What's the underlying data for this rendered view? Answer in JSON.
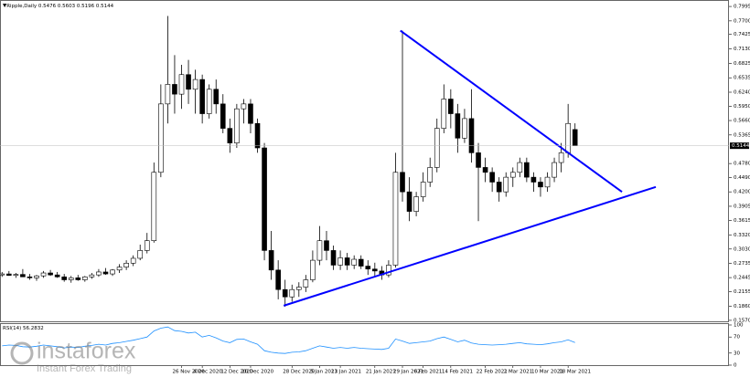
{
  "chart_data": {
    "type": "candlestick",
    "title": "Ripple,Daily",
    "xlim": [
      -0.3,
      105.3
    ],
    "ylim": [
      0.155,
      0.809
    ],
    "yticks": [
      {
        "value": 0.7995,
        "label": "0.7995"
      },
      {
        "value": 0.77,
        "label": "0.7700"
      },
      {
        "value": 0.7425,
        "label": "0.7425"
      },
      {
        "value": 0.713,
        "label": "0.7130"
      },
      {
        "value": 0.6825,
        "label": "0.6825"
      },
      {
        "value": 0.6535,
        "label": "0.6535"
      },
      {
        "value": 0.624,
        "label": "0.6240"
      },
      {
        "value": 0.595,
        "label": "0.5950"
      },
      {
        "value": 0.566,
        "label": "0.5660"
      },
      {
        "value": 0.5365,
        "label": "0.5365"
      },
      {
        "value": 0.478,
        "label": "0.4780"
      },
      {
        "value": 0.449,
        "label": "0.4490"
      },
      {
        "value": 0.42,
        "label": "0.4200"
      },
      {
        "value": 0.3905,
        "label": "0.3905"
      },
      {
        "value": 0.3615,
        "label": "0.3615"
      },
      {
        "value": 0.332,
        "label": "0.3320"
      },
      {
        "value": 0.303,
        "label": "0.3030"
      },
      {
        "value": 0.2735,
        "label": "0.2735"
      },
      {
        "value": 0.2445,
        "label": "0.2445"
      },
      {
        "value": 0.2155,
        "label": "0.2155"
      },
      {
        "value": 0.186,
        "label": "0.1860"
      },
      {
        "value": 0.157,
        "label": "0.1570"
      }
    ],
    "categories": [
      null,
      null,
      null,
      null,
      null,
      null,
      null,
      null,
      null,
      null,
      null,
      null,
      null,
      null,
      null,
      null,
      null,
      null,
      null,
      null,
      null,
      null,
      null,
      null,
      null,
      null,
      "26 Nov 2020",
      null,
      null,
      "4 Dec 2020",
      null,
      null,
      null,
      "12 Dec 2020",
      null,
      null,
      "20 Dec 2020",
      null,
      null,
      null,
      null,
      null,
      "28 Dec 2020",
      null,
      null,
      null,
      "5 Jan 2021",
      null,
      null,
      "13 Jan 2021",
      null,
      null,
      null,
      null,
      "21 Jan 2021",
      null,
      null,
      null,
      "29 Jan 2021",
      null,
      null,
      "6 Feb 2021",
      null,
      null,
      null,
      "14 Feb 2021",
      null,
      null,
      null,
      null,
      "22 Feb 2021",
      null,
      null,
      null,
      "2 Mar 2021",
      null,
      null,
      null,
      "10 Mar 2021",
      null,
      null,
      null,
      "18 Mar 2021",
      null
    ],
    "series": [
      {
        "name": "Ripple",
        "up_color": "#ffffff",
        "down_color": "#000000",
        "values": [
          [
            0.25,
            0.256,
            0.246,
            0.252
          ],
          [
            0.252,
            0.258,
            0.248,
            0.249
          ],
          [
            0.249,
            0.254,
            0.244,
            0.251
          ],
          [
            0.251,
            0.262,
            0.248,
            0.246
          ],
          [
            0.246,
            0.252,
            0.24,
            0.244
          ],
          [
            0.244,
            0.25,
            0.238,
            0.248
          ],
          [
            0.248,
            0.258,
            0.244,
            0.254
          ],
          [
            0.254,
            0.26,
            0.248,
            0.25
          ],
          [
            0.25,
            0.256,
            0.244,
            0.246
          ],
          [
            0.246,
            0.252,
            0.236,
            0.24
          ],
          [
            0.24,
            0.248,
            0.234,
            0.244
          ],
          [
            0.244,
            0.25,
            0.238,
            0.24
          ],
          [
            0.24,
            0.248,
            0.236,
            0.246
          ],
          [
            0.246,
            0.254,
            0.242,
            0.25
          ],
          [
            0.25,
            0.262,
            0.246,
            0.256
          ],
          [
            0.256,
            0.264,
            0.25,
            0.252
          ],
          [
            0.252,
            0.262,
            0.248,
            0.26
          ],
          [
            0.26,
            0.272,
            0.254,
            0.266
          ],
          [
            0.266,
            0.28,
            0.26,
            0.274
          ],
          [
            0.274,
            0.29,
            0.268,
            0.284
          ],
          [
            0.284,
            0.312,
            0.28,
            0.3
          ],
          [
            0.3,
            0.336,
            0.294,
            0.32
          ],
          [
            0.32,
            0.48,
            0.316,
            0.46
          ],
          [
            0.46,
            0.64,
            0.45,
            0.6
          ],
          [
            0.6,
            0.78,
            0.56,
            0.64
          ],
          [
            0.64,
            0.7,
            0.58,
            0.62
          ],
          [
            0.62,
            0.68,
            0.59,
            0.66
          ],
          [
            0.66,
            0.69,
            0.6,
            0.63
          ],
          [
            0.63,
            0.67,
            0.58,
            0.65
          ],
          [
            0.65,
            0.66,
            0.56,
            0.58
          ],
          [
            0.58,
            0.64,
            0.57,
            0.63
          ],
          [
            0.63,
            0.65,
            0.58,
            0.6
          ],
          [
            0.6,
            0.62,
            0.54,
            0.55
          ],
          [
            0.55,
            0.57,
            0.5,
            0.52
          ],
          [
            0.52,
            0.6,
            0.51,
            0.59
          ],
          [
            0.59,
            0.61,
            0.56,
            0.6
          ],
          [
            0.6,
            0.61,
            0.54,
            0.56
          ],
          [
            0.56,
            0.57,
            0.5,
            0.51
          ],
          [
            0.51,
            0.52,
            0.28,
            0.3
          ],
          [
            0.3,
            0.34,
            0.24,
            0.26
          ],
          [
            0.26,
            0.28,
            0.2,
            0.22
          ],
          [
            0.22,
            0.24,
            0.185,
            0.205
          ],
          [
            0.205,
            0.23,
            0.195,
            0.22
          ],
          [
            0.22,
            0.235,
            0.205,
            0.225
          ],
          [
            0.225,
            0.25,
            0.215,
            0.24
          ],
          [
            0.24,
            0.3,
            0.235,
            0.28
          ],
          [
            0.28,
            0.35,
            0.27,
            0.32
          ],
          [
            0.32,
            0.34,
            0.28,
            0.3
          ],
          [
            0.3,
            0.31,
            0.26,
            0.27
          ],
          [
            0.27,
            0.3,
            0.26,
            0.285
          ],
          [
            0.285,
            0.295,
            0.26,
            0.27
          ],
          [
            0.27,
            0.29,
            0.262,
            0.282
          ],
          [
            0.282,
            0.29,
            0.262,
            0.268
          ],
          [
            0.268,
            0.28,
            0.25,
            0.262
          ],
          [
            0.262,
            0.275,
            0.245,
            0.258
          ],
          [
            0.258,
            0.268,
            0.24,
            0.25
          ],
          [
            0.25,
            0.28,
            0.245,
            0.27
          ],
          [
            0.27,
            0.5,
            0.265,
            0.46
          ],
          [
            0.46,
            0.75,
            0.4,
            0.42
          ],
          [
            0.42,
            0.45,
            0.36,
            0.38
          ],
          [
            0.38,
            0.42,
            0.37,
            0.41
          ],
          [
            0.41,
            0.46,
            0.4,
            0.44
          ],
          [
            0.44,
            0.49,
            0.43,
            0.47
          ],
          [
            0.47,
            0.57,
            0.46,
            0.55
          ],
          [
            0.55,
            0.64,
            0.54,
            0.61
          ],
          [
            0.61,
            0.63,
            0.55,
            0.58
          ],
          [
            0.58,
            0.6,
            0.5,
            0.53
          ],
          [
            0.53,
            0.59,
            0.52,
            0.57
          ],
          [
            0.57,
            0.63,
            0.48,
            0.5
          ],
          [
            0.5,
            0.52,
            0.36,
            0.47
          ],
          [
            0.47,
            0.49,
            0.44,
            0.46
          ],
          [
            0.46,
            0.47,
            0.42,
            0.44
          ],
          [
            0.44,
            0.45,
            0.4,
            0.42
          ],
          [
            0.42,
            0.46,
            0.41,
            0.45
          ],
          [
            0.45,
            0.47,
            0.43,
            0.46
          ],
          [
            0.46,
            0.49,
            0.45,
            0.48
          ],
          [
            0.48,
            0.49,
            0.44,
            0.45
          ],
          [
            0.45,
            0.46,
            0.42,
            0.44
          ],
          [
            0.44,
            0.45,
            0.41,
            0.43
          ],
          [
            0.43,
            0.46,
            0.42,
            0.45
          ],
          [
            0.45,
            0.49,
            0.44,
            0.48
          ],
          [
            0.48,
            0.52,
            0.46,
            0.5
          ],
          [
            0.5,
            0.6,
            0.49,
            0.56
          ],
          [
            0.5476,
            0.5603,
            0.5196,
            0.5144
          ]
        ]
      }
    ],
    "trendlines": [
      {
        "color": "#0000ff",
        "x": [
          57.7,
          89.8
        ],
        "y": [
          0.75,
          0.42
        ]
      },
      {
        "color": "#0000ff",
        "x": [
          40.8,
          94.7
        ],
        "y": [
          0.187,
          0.43
        ]
      }
    ],
    "rsi": {
      "name": "RSI(14)",
      "color": "#1e90ff",
      "ylim": [
        0,
        100
      ],
      "yticks": [
        100,
        70,
        30,
        0
      ],
      "values": [
        48,
        50,
        49,
        46,
        45,
        47,
        50,
        48,
        46,
        43,
        45,
        44,
        47,
        49,
        52,
        50,
        54,
        56,
        59,
        62,
        66,
        70,
        85,
        92,
        95,
        86,
        84,
        80,
        82,
        70,
        74,
        68,
        60,
        56,
        64,
        65,
        58,
        52,
        36,
        32,
        30,
        29,
        32,
        33,
        36,
        42,
        48,
        45,
        42,
        44,
        42,
        44,
        42,
        41,
        40,
        39,
        42,
        65,
        60,
        54,
        56,
        58,
        60,
        66,
        70,
        64,
        58,
        62,
        55,
        52,
        51,
        50,
        51,
        52,
        54,
        56,
        53,
        52,
        51,
        53,
        56,
        58,
        63,
        56.2832
      ]
    },
    "watermark": {
      "brand": "instaforex",
      "tagline": "Instant Forex Trading"
    }
  }
}
